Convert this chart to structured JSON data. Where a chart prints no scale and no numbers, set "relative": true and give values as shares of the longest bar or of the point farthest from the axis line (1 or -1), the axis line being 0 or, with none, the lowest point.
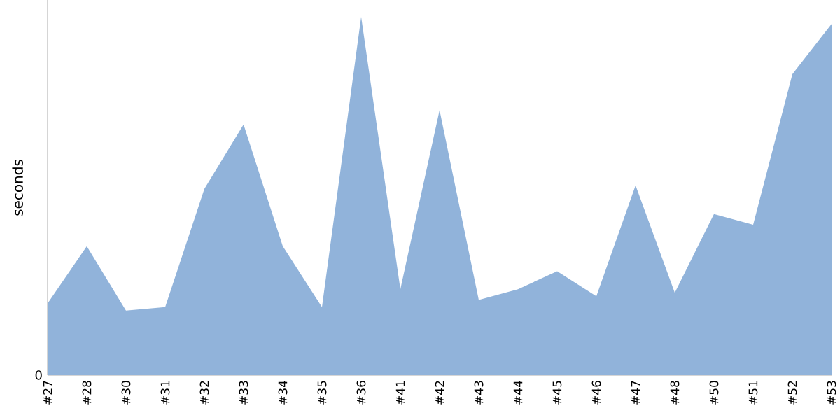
{
  "chart_data": {
    "type": "area",
    "ylabel": "seconds",
    "relative": true,
    "color": "#91b3da",
    "categories": [
      "#27",
      "#28",
      "#30",
      "#31",
      "#32",
      "#33",
      "#34",
      "#35",
      "#36",
      "#41",
      "#42",
      "#43",
      "#44",
      "#45",
      "#46",
      "#47",
      "#48",
      "#50",
      "#51",
      "#52",
      "#53"
    ],
    "values": [
      0.2,
      0.36,
      0.18,
      0.19,
      0.52,
      0.7,
      0.36,
      0.19,
      1.0,
      0.24,
      0.74,
      0.21,
      0.24,
      0.29,
      0.22,
      0.53,
      0.23,
      0.45,
      0.42,
      0.84,
      0.98
    ],
    "annotations": [
      "0"
    ],
    "grid": false
  }
}
